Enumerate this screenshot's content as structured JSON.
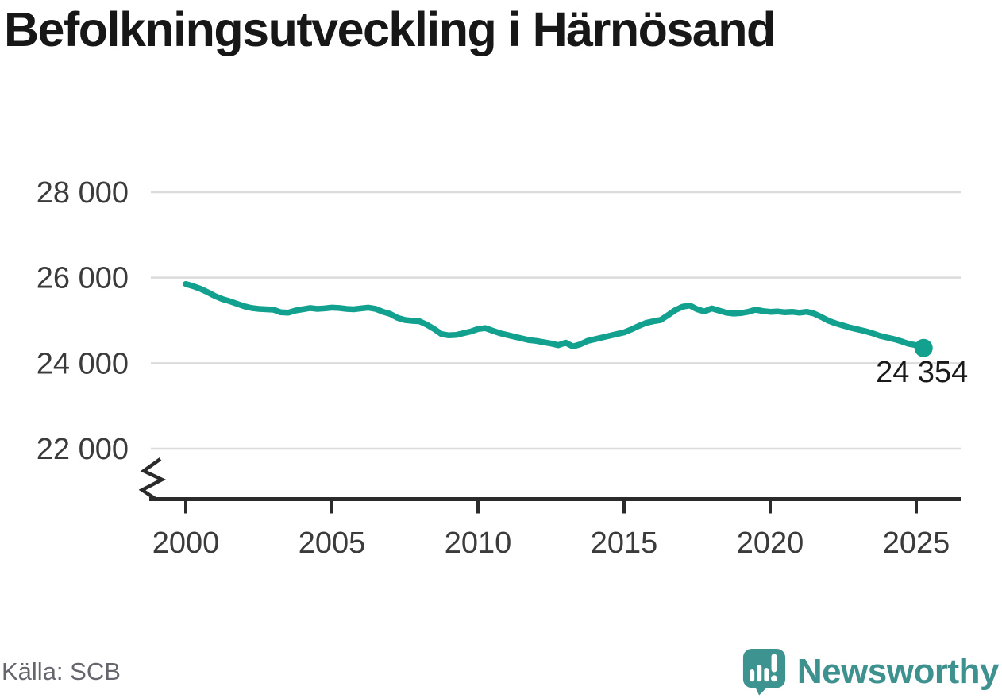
{
  "title": "Befolkningsutveckling i Härnösand",
  "footer": {
    "source": "Källa: SCB",
    "brand": "Newsworthy"
  },
  "colors": {
    "line": "#12a08f",
    "grid": "#dbdbdb",
    "axis": "#2b2b2b",
    "tick_text": "#3b3b3b",
    "title_text": "#171717",
    "source_text": "#65656d",
    "brand_teal": "#3d918e",
    "background": "#ffffff"
  },
  "chart_data": {
    "type": "line",
    "title": "Befolkningsutveckling i Härnösand",
    "xlabel": "",
    "ylabel": "",
    "grid": "horizontal",
    "legend": "none",
    "y_axis_break": true,
    "x_ticks": [
      {
        "value": 2000,
        "label": "2000"
      },
      {
        "value": 2005,
        "label": "2005"
      },
      {
        "value": 2010,
        "label": "2010"
      },
      {
        "value": 2015,
        "label": "2015"
      },
      {
        "value": 2020,
        "label": "2020"
      },
      {
        "value": 2025,
        "label": "2025"
      }
    ],
    "y_ticks": [
      {
        "value": 28000,
        "label": "28 000"
      },
      {
        "value": 26000,
        "label": "26 000"
      },
      {
        "value": 24000,
        "label": "24 000"
      },
      {
        "value": 22000,
        "label": "22 000"
      }
    ],
    "xlim": [
      1998.8,
      2026.5
    ],
    "ylim": [
      21500,
      28500
    ],
    "series": [
      {
        "name": "Befolkning",
        "x_start": 2000.0,
        "x_step": 0.25,
        "values": [
          25850,
          25800,
          25740,
          25660,
          25570,
          25500,
          25450,
          25390,
          25330,
          25290,
          25270,
          25260,
          25250,
          25190,
          25180,
          25230,
          25260,
          25290,
          25270,
          25280,
          25300,
          25290,
          25270,
          25260,
          25280,
          25300,
          25270,
          25200,
          25150,
          25060,
          25010,
          24990,
          24980,
          24900,
          24800,
          24680,
          24650,
          24660,
          24700,
          24740,
          24800,
          24820,
          24760,
          24700,
          24660,
          24620,
          24580,
          24540,
          24520,
          24490,
          24460,
          24420,
          24480,
          24390,
          24440,
          24520,
          24560,
          24600,
          24640,
          24680,
          24720,
          24790,
          24870,
          24940,
          24980,
          25010,
          25120,
          25240,
          25320,
          25350,
          25260,
          25210,
          25280,
          25230,
          25180,
          25160,
          25170,
          25200,
          25250,
          25220,
          25200,
          25210,
          25190,
          25200,
          25180,
          25200,
          25160,
          25080,
          24990,
          24930,
          24880,
          24830,
          24790,
          24750,
          24700,
          24640,
          24600,
          24560,
          24510,
          24450,
          24420,
          24354
        ]
      }
    ],
    "last_value": 24354,
    "last_value_label": "24 354"
  }
}
